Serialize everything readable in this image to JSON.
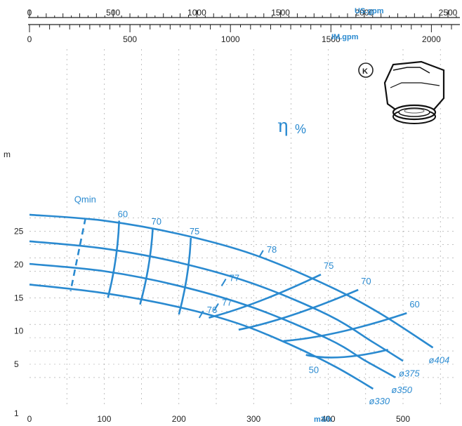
{
  "chart_data": {
    "type": "line",
    "title": "",
    "xlabel": "m3/h",
    "ylabel": "m",
    "xlim": [
      0,
      550
    ],
    "ylim": [
      1,
      28
    ],
    "x_ticks": [
      0,
      100,
      200,
      300,
      400,
      500
    ],
    "x_tick_labels": [
      "0",
      "100",
      "200",
      "300",
      "400",
      "500"
    ],
    "y_ticks": [
      1,
      5,
      10,
      15,
      20,
      25
    ],
    "y_tick_labels": [
      "1",
      "5",
      "10",
      "15",
      "20",
      "25"
    ],
    "y_axis_unit": "m",
    "top_axes": [
      {
        "unit": "US.gpm",
        "ticks": [
          "0",
          "500",
          "1000",
          "1500",
          "2000",
          "2500"
        ],
        "values": [
          0,
          500,
          1000,
          1500,
          2000,
          2500
        ]
      },
      {
        "unit": "IM.gpm",
        "ticks": [
          "0",
          "500",
          "1000",
          "1500",
          "2000"
        ],
        "values": [
          0,
          500,
          1000,
          1500,
          2000
        ]
      }
    ],
    "grid": true,
    "colors": {
      "curves": "#2a8ad0",
      "text": "#222222"
    },
    "series": [
      {
        "name": "ø404",
        "x": [
          0,
          100,
          200,
          300,
          400,
          470,
          540
        ],
        "y": [
          27.5,
          26.6,
          24.6,
          21.5,
          16.8,
          12.6,
          7.5
        ]
      },
      {
        "name": "ø375",
        "x": [
          0,
          100,
          200,
          300,
          400,
          460,
          500
        ],
        "y": [
          23.5,
          22.4,
          20.3,
          17.1,
          12.4,
          8.3,
          5.5
        ]
      },
      {
        "name": "ø350",
        "x": [
          0,
          100,
          200,
          300,
          400,
          450,
          490
        ],
        "y": [
          20.1,
          19.0,
          16.8,
          13.5,
          8.8,
          5.5,
          3.0
        ]
      },
      {
        "name": "ø330",
        "x": [
          0,
          100,
          200,
          280,
          350,
          410,
          460
        ],
        "y": [
          17.0,
          15.7,
          13.6,
          11.1,
          7.9,
          4.6,
          1.3
        ]
      }
    ],
    "efficiency": {
      "label": "η",
      "unit": "%",
      "iso_lines": [
        {
          "label": "60",
          "x": [
            120,
            105
          ],
          "y": [
            26.6,
            15.0
          ]
        },
        {
          "label": "70",
          "x": [
            165,
            148
          ],
          "y": [
            25.5,
            14.0
          ]
        },
        {
          "label": "75",
          "x": [
            216,
            200
          ],
          "y": [
            24.0,
            12.5
          ]
        },
        {
          "label": "75",
          "x": [
            240,
            390
          ],
          "y": [
            12.0,
            18.5
          ]
        },
        {
          "label": "70",
          "x": [
            280,
            440
          ],
          "y": [
            10.2,
            16.2
          ]
        },
        {
          "label": "60",
          "x": [
            340,
            505
          ],
          "y": [
            8.5,
            12.7
          ]
        },
        {
          "label": "50",
          "x": [
            370,
            480
          ],
          "y": [
            6.4,
            7.2
          ]
        }
      ],
      "point_labels": [
        {
          "label": "78",
          "x": 310,
          "y": 21.6
        },
        {
          "label": "77",
          "x": 260,
          "y": 17.3
        },
        {
          "label": "77",
          "x": 250,
          "y": 13.6
        },
        {
          "label": "76",
          "x": 230,
          "y": 12.5
        }
      ]
    },
    "min_flow": {
      "label": "Qmin",
      "x": [
        75,
        55
      ],
      "y": [
        27.0,
        16.0
      ]
    }
  }
}
